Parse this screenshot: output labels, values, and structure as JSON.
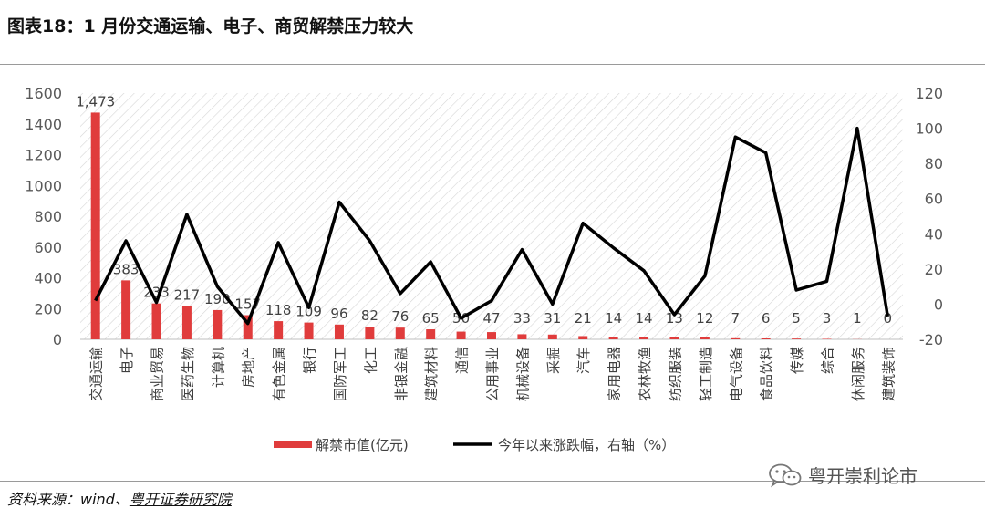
{
  "figure": {
    "title": "图表18：1 月份交通运输、电子、商贸解禁压力较大",
    "source_prefix": "资料来源：wind、",
    "source_org": "粤开证券研究院",
    "watermark": "粤开崇利论市"
  },
  "colors": {
    "bar": "#e03c3c",
    "line": "#000000",
    "axis_text": "#595959",
    "hatch": "#d6d6d6"
  },
  "chart_data": {
    "type": "bar+line",
    "categories": [
      "交通运输",
      "电子",
      "商业贸易",
      "医药生物",
      "计算机",
      "房地产",
      "有色金属",
      "银行",
      "国防军工",
      "化工",
      "非银金融",
      "建筑材料",
      "通信",
      "公用事业",
      "机械设备",
      "采掘",
      "汽车",
      "家用电器",
      "农林牧渔",
      "纺织服装",
      "轻工制造",
      "电气设备",
      "食品饮料",
      "传媒",
      "综合",
      "休闲服务",
      "建筑装饰"
    ],
    "series": [
      {
        "name": "解禁市值(亿元)",
        "kind": "bar",
        "axis": "left",
        "values": [
          1473,
          383,
          233,
          217,
          190,
          157,
          118,
          109,
          96,
          82,
          76,
          65,
          50,
          47,
          33,
          31,
          21,
          14,
          14,
          13,
          12,
          7,
          6,
          5,
          3,
          1,
          0
        ],
        "labels": [
          "1,473",
          "383",
          "233",
          "217",
          "190",
          "157",
          "118",
          "109",
          "96",
          "82",
          "76",
          "65",
          "50",
          "47",
          "33",
          "31",
          "21",
          "14",
          "14",
          "13",
          "12",
          "7",
          "6",
          "5",
          "3",
          "1",
          "0"
        ]
      },
      {
        "name": "今年以来涨跌幅，右轴（%）",
        "kind": "line",
        "axis": "right",
        "values": [
          2,
          36,
          1,
          51,
          10,
          -11,
          35,
          -2,
          58,
          36,
          6,
          24,
          -8,
          2,
          31,
          0,
          46,
          32,
          19,
          -6,
          16,
          95,
          86,
          8,
          13,
          100,
          -7
        ]
      }
    ],
    "y_left": {
      "min": 0,
      "max": 1600,
      "ticks": [
        0,
        200,
        400,
        600,
        800,
        1000,
        1200,
        1400,
        1600
      ]
    },
    "y_right": {
      "min": -20,
      "max": 120,
      "ticks": [
        -20,
        0,
        20,
        40,
        60,
        80,
        100,
        120
      ]
    },
    "legend_position": "bottom"
  }
}
